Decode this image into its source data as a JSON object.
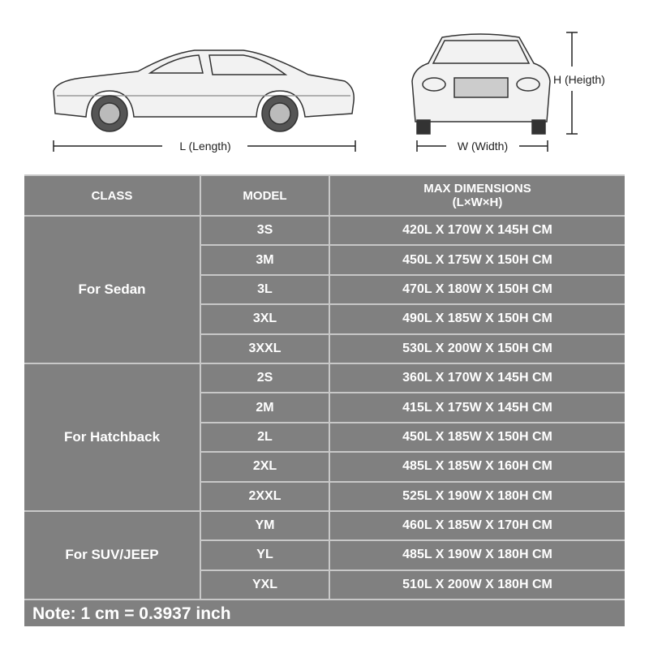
{
  "diagram": {
    "length_label": "L (Length)",
    "width_label": "W (Width)",
    "height_label": "H (Heigth)"
  },
  "table": {
    "headers": {
      "class": "CLASS",
      "model": "MODEL",
      "dims_line1": "MAX DIMENSIONS",
      "dims_line2": "(L×W×H)"
    },
    "groups": [
      {
        "class": "For Sedan",
        "rows": [
          {
            "model": "3S",
            "dims": "420L X 170W X 145H CM"
          },
          {
            "model": "3M",
            "dims": "450L X 175W X 150H CM"
          },
          {
            "model": "3L",
            "dims": "470L X 180W X 150H CM"
          },
          {
            "model": "3XL",
            "dims": "490L X 185W X 150H CM"
          },
          {
            "model": "3XXL",
            "dims": "530L X 200W X 150H CM"
          }
        ]
      },
      {
        "class": "For Hatchback",
        "rows": [
          {
            "model": "2S",
            "dims": "360L X 170W X 145H CM"
          },
          {
            "model": "2M",
            "dims": "415L X 175W X 145H CM"
          },
          {
            "model": "2L",
            "dims": "450L X 185W X 150H CM"
          },
          {
            "model": "2XL",
            "dims": "485L X 185W X 160H CM"
          },
          {
            "model": "2XXL",
            "dims": "525L X 190W X 180H CM"
          }
        ]
      },
      {
        "class": "For SUV/JEEP",
        "rows": [
          {
            "model": "YM",
            "dims": "460L X 185W X 170H CM"
          },
          {
            "model": "YL",
            "dims": "485L X 190W X 180H CM"
          },
          {
            "model": "YXL",
            "dims": "510L X 200W X 180H CM"
          }
        ]
      }
    ],
    "note": "Note: 1 cm = 0.3937 inch"
  },
  "colors": {
    "table_bg": "#808080",
    "grid_line": "#c8c8c8",
    "text": "#ffffff"
  }
}
